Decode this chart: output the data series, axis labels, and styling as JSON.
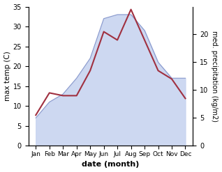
{
  "months": [
    "Jan",
    "Feb",
    "Mar",
    "Apr",
    "May",
    "Jun",
    "Jul",
    "Aug",
    "Sep",
    "Oct",
    "Nov",
    "Dec"
  ],
  "max_temp": [
    7,
    11,
    13,
    17,
    22,
    32,
    33,
    33,
    29,
    21,
    17,
    17
  ],
  "precipitation": [
    5.5,
    9.5,
    9.0,
    9.0,
    13.5,
    20.5,
    19.0,
    24.5,
    19.0,
    13.5,
    12.0,
    8.5
  ],
  "precip_color": "#a03040",
  "temp_fill_color": "#c8d4f0",
  "temp_line_color": "#8898cc",
  "temp_ylim": [
    0,
    35
  ],
  "precip_ylim": [
    0,
    25
  ],
  "precip_right_ticks": [
    0,
    5,
    10,
    15,
    20
  ],
  "left_yticks": [
    0,
    5,
    10,
    15,
    20,
    25,
    30,
    35
  ],
  "ylabel_left": "max temp (C)",
  "ylabel_right": "med. precipitation (kg/m2)",
  "xlabel": "date (month)",
  "fig_width": 3.18,
  "fig_height": 2.47,
  "dpi": 100
}
